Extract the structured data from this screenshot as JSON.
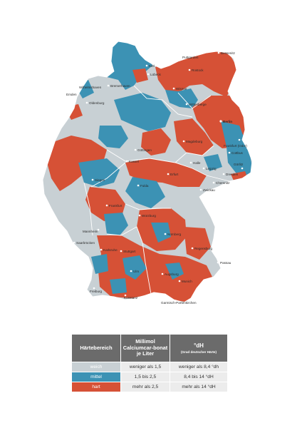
{
  "colors": {
    "weich": "#c8d0d4",
    "mittel": "#3c92b4",
    "hart": "#d65136",
    "border": "#ffffff",
    "header_bg": "#6b6b6b"
  },
  "cities": [
    {
      "name": "Bessenitz",
      "label": "Bessenitz"
    },
    {
      "name": "Puttgarden",
      "label": "Puttgarden"
    },
    {
      "name": "Kiel",
      "label": "Kiel"
    },
    {
      "name": "Rostock",
      "label": "Rostock"
    },
    {
      "name": "Lübeck",
      "label": "Lübeck"
    },
    {
      "name": "Wismar",
      "label": "Wismar"
    },
    {
      "name": "Bremerhaven",
      "label": "Bremerhaven"
    },
    {
      "name": "Wilhelmshaven",
      "label": "Wilhelmshaven"
    },
    {
      "name": "Emden",
      "label": "Emden"
    },
    {
      "name": "Oldenburg",
      "label": "Oldenburg"
    },
    {
      "name": "Wittenberge",
      "label": "Wittenberge"
    },
    {
      "name": "Berlin",
      "label": "Berlin"
    },
    {
      "name": "Magdeburg",
      "label": "Magdeburg"
    },
    {
      "name": "Frankfurt (Oder)",
      "label": "Frankfurt (Oder)"
    },
    {
      "name": "Cottbus",
      "label": "Cottbus"
    },
    {
      "name": "Dresden",
      "label": "Dresden"
    },
    {
      "name": "Görlitz",
      "label": "Görlitz"
    },
    {
      "name": "Leipzig",
      "label": "Leipzig"
    },
    {
      "name": "Halle",
      "label": "Halle"
    },
    {
      "name": "Göttingen",
      "label": "Göttingen"
    },
    {
      "name": "Kassel",
      "label": "Kassel"
    },
    {
      "name": "Erfurt",
      "label": "Erfurt"
    },
    {
      "name": "Chemnitz",
      "label": "Chemnitz"
    },
    {
      "name": "Zwickau",
      "label": "Zwickau"
    },
    {
      "name": "Siegen",
      "label": "Siegen"
    },
    {
      "name": "Fulda",
      "label": "Fulda"
    },
    {
      "name": "Frankfurt",
      "label": "Frankfurt"
    },
    {
      "name": "Würzburg",
      "label": "Würzburg"
    },
    {
      "name": "Nürnberg",
      "label": "Nürnberg"
    },
    {
      "name": "Mannheim",
      "label": "Mannheim"
    },
    {
      "name": "Saarbrücken",
      "label": "Saarbrücken"
    },
    {
      "name": "Karlsruhe",
      "label": "Karlsruhe"
    },
    {
      "name": "Stuttgart",
      "label": "Stuttgart"
    },
    {
      "name": "Regensburg",
      "label": "Regensburg"
    },
    {
      "name": "Passau",
      "label": "Passau"
    },
    {
      "name": "Ulm",
      "label": "Ulm"
    },
    {
      "name": "Augsburg",
      "label": "Augsburg"
    },
    {
      "name": "Munich",
      "label": "Munich"
    },
    {
      "name": "Freiburg",
      "label": "Freiburg"
    },
    {
      "name": "Konstanz",
      "label": "Konstanz"
    },
    {
      "name": "Garmisch-Partenkirchen",
      "label": "Garmisch-Partenkirchen"
    }
  ],
  "legend": {
    "header_category": "Härtebereich",
    "header_mmol": "Millimol Calciumcar-bonat je Liter",
    "header_dh": "°dH",
    "header_dh_sub": "(Grad deutscher Härte)",
    "rows": [
      {
        "category": "weich",
        "mmol": "weniger als 1,5",
        "dh": "weniger als 8,4 °dh",
        "color_key": "weich"
      },
      {
        "category": "mittel",
        "mmol": "1,5 bis 2,5",
        "dh": "8,4 bis 14 °dH",
        "color_key": "mittel"
      },
      {
        "category": "hart",
        "mmol": "mehr als 2,5",
        "dh": "mehr als 14 °dH",
        "color_key": "hart"
      }
    ]
  }
}
